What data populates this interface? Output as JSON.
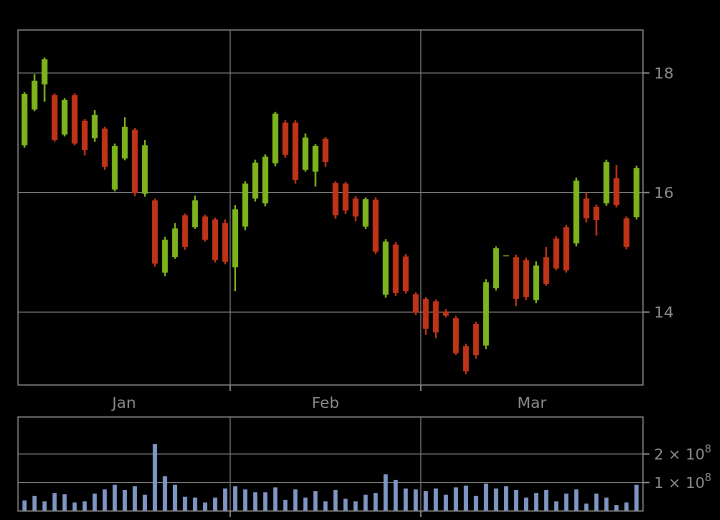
{
  "chart_data": {
    "type": "candlestick",
    "title": "",
    "panels": [
      "price",
      "volume"
    ],
    "grid": true,
    "legend": false,
    "xaxis": {
      "tick_labels": [
        "Jan",
        "Feb",
        "Mar"
      ],
      "month_start_indices": [
        0,
        21,
        40
      ]
    },
    "price_axis": {
      "side": "right",
      "range": [
        12.78,
        18.72
      ],
      "ticks": [
        {
          "label": "18",
          "value": 18
        },
        {
          "label": "16",
          "value": 16
        },
        {
          "label": "14",
          "value": 14
        }
      ]
    },
    "volume_axis": {
      "side": "right",
      "range": [
        0,
        330000000
      ],
      "ticks": [
        {
          "mantissa": "2",
          "times": " × 10",
          "exponent": "8",
          "value": 200000000
        },
        {
          "mantissa": "1",
          "times": " × 10",
          "exponent": "8",
          "value": 100000000
        }
      ]
    },
    "columns": [
      "open",
      "high",
      "low",
      "close",
      "volume"
    ],
    "ohlcv": [
      [
        16.79,
        17.68,
        16.75,
        17.65,
        37000000
      ],
      [
        17.39,
        17.98,
        17.36,
        17.87,
        53000000
      ],
      [
        17.81,
        18.26,
        17.52,
        18.23,
        34000000
      ],
      [
        17.63,
        17.66,
        16.85,
        16.88,
        63000000
      ],
      [
        16.97,
        17.58,
        16.94,
        17.55,
        59000000
      ],
      [
        17.63,
        17.66,
        16.79,
        16.82,
        30000000
      ],
      [
        17.2,
        17.23,
        16.62,
        16.71,
        34000000
      ],
      [
        16.91,
        17.38,
        16.85,
        17.3,
        61000000
      ],
      [
        17.07,
        17.1,
        16.38,
        16.43,
        76000000
      ],
      [
        16.05,
        16.82,
        16.02,
        16.78,
        92000000
      ],
      [
        16.57,
        17.26,
        16.54,
        17.1,
        74000000
      ],
      [
        17.05,
        17.08,
        15.94,
        15.99,
        87000000
      ],
      [
        15.98,
        16.88,
        15.93,
        16.79,
        57000000
      ],
      [
        15.87,
        15.9,
        14.76,
        14.81,
        235000000
      ],
      [
        14.66,
        15.26,
        14.6,
        15.21,
        122000000
      ],
      [
        14.92,
        15.49,
        14.89,
        15.4,
        92000000
      ],
      [
        15.62,
        15.65,
        15.04,
        15.09,
        50000000
      ],
      [
        15.42,
        15.95,
        15.39,
        15.87,
        47000000
      ],
      [
        15.6,
        15.63,
        15.18,
        15.21,
        30000000
      ],
      [
        15.55,
        15.58,
        14.83,
        14.87,
        47000000
      ],
      [
        15.49,
        15.55,
        14.8,
        14.84,
        79000000
      ],
      [
        14.75,
        15.79,
        14.35,
        15.72,
        87000000
      ],
      [
        15.43,
        16.19,
        15.37,
        16.15,
        76000000
      ],
      [
        15.9,
        16.55,
        15.85,
        16.5,
        66000000
      ],
      [
        15.82,
        16.64,
        15.77,
        16.6,
        66000000
      ],
      [
        16.49,
        17.35,
        16.44,
        17.32,
        83000000
      ],
      [
        17.17,
        17.21,
        16.58,
        16.63,
        39000000
      ],
      [
        17.17,
        17.21,
        16.15,
        16.21,
        76000000
      ],
      [
        16.38,
        16.99,
        16.35,
        16.92,
        47000000
      ],
      [
        16.35,
        16.81,
        16.1,
        16.78,
        70000000
      ],
      [
        16.9,
        16.93,
        16.43,
        16.51,
        34000000
      ],
      [
        16.16,
        16.19,
        15.56,
        15.62,
        74000000
      ],
      [
        16.15,
        16.18,
        15.64,
        15.7,
        43000000
      ],
      [
        15.9,
        15.94,
        15.52,
        15.6,
        34000000
      ],
      [
        15.43,
        15.92,
        15.39,
        15.89,
        57000000
      ],
      [
        15.88,
        15.92,
        14.97,
        15.01,
        63000000
      ],
      [
        14.29,
        15.22,
        14.24,
        15.18,
        129000000
      ],
      [
        15.13,
        15.17,
        14.27,
        14.32,
        109000000
      ],
      [
        14.93,
        14.97,
        14.31,
        14.35,
        79000000
      ],
      [
        14.3,
        14.33,
        13.95,
        13.99,
        76000000
      ],
      [
        14.22,
        14.25,
        13.62,
        13.72,
        70000000
      ],
      [
        14.18,
        14.21,
        13.56,
        13.66,
        79000000
      ],
      [
        14.01,
        14.05,
        13.91,
        13.94,
        57000000
      ],
      [
        13.9,
        13.94,
        13.28,
        13.31,
        83000000
      ],
      [
        13.43,
        13.47,
        12.96,
        13.01,
        89000000
      ],
      [
        13.8,
        13.84,
        13.22,
        13.28,
        53000000
      ],
      [
        13.44,
        14.55,
        13.38,
        14.5,
        96000000
      ],
      [
        14.4,
        15.1,
        14.36,
        15.07,
        79000000
      ],
      [
        14.95,
        14.95,
        14.95,
        14.95,
        87000000
      ],
      [
        14.92,
        14.96,
        14.1,
        14.22,
        74000000
      ],
      [
        14.87,
        14.91,
        14.2,
        14.25,
        47000000
      ],
      [
        14.2,
        14.85,
        14.15,
        14.78,
        63000000
      ],
      [
        14.92,
        15.09,
        14.44,
        14.47,
        74000000
      ],
      [
        15.23,
        15.27,
        14.7,
        14.73,
        34000000
      ],
      [
        15.42,
        15.46,
        14.66,
        14.7,
        61000000
      ],
      [
        15.15,
        16.25,
        15.1,
        16.2,
        76000000
      ],
      [
        15.9,
        16.0,
        15.5,
        15.57,
        26000000
      ],
      [
        15.76,
        15.8,
        15.28,
        15.54,
        61000000
      ],
      [
        15.82,
        16.55,
        15.78,
        16.51,
        47000000
      ],
      [
        16.24,
        16.46,
        15.75,
        15.79,
        21000000
      ],
      [
        15.57,
        15.6,
        15.05,
        15.09,
        30000000
      ],
      [
        15.59,
        16.45,
        15.55,
        16.41,
        92000000
      ]
    ]
  },
  "colors": {
    "background": "#000000",
    "up": "#7db41e",
    "down": "#bf3418",
    "volume_bar": "#7e96c3",
    "grid": "#7a7a7a",
    "frame": "#898989",
    "text": "#8c8c8c"
  }
}
